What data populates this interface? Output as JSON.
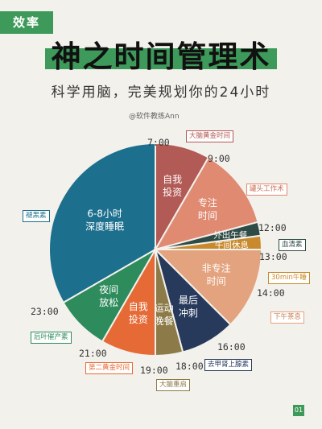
{
  "tag": "效率",
  "title": "神之时间管理术",
  "subtitle": "科学用脑，完美规划你的24小时",
  "credit": "@软件教练Ann",
  "page_number": "01",
  "colors": {
    "green": "#3D9A5A",
    "blue": "#1D6F8E",
    "rose": "#B25A55",
    "salmon": "#E08A72",
    "dark": "#2F4B45",
    "gold": "#C98A2E",
    "peach": "#E4A37F",
    "navy": "#273A5C",
    "olive": "#8C7A48",
    "orange": "#E66A35",
    "teal": "#2E8B5C"
  },
  "chart_data": {
    "type": "pie",
    "title": "",
    "segments": [
      {
        "label": "6-8小时\n深度睡眠",
        "start": "23:00",
        "end": "07:00",
        "color": "#1D6F8E"
      },
      {
        "label": "自我\n投资",
        "start": "07:00",
        "end": "09:00",
        "color": "#B25A55"
      },
      {
        "label": "专注\n时间",
        "start": "09:00",
        "end": "12:00",
        "color": "#E08A72"
      },
      {
        "label": "外出午餐",
        "start": "12:00",
        "end": "12:30",
        "color": "#2F4B45"
      },
      {
        "label": "午间休息",
        "start": "12:30",
        "end": "13:00",
        "color": "#C98A2E"
      },
      {
        "label": "非专注\n时间",
        "start": "13:00",
        "end": "16:00",
        "color": "#E4A37F"
      },
      {
        "label": "最后\n冲刺",
        "start": "16:00",
        "end": "18:00",
        "color": "#273A5C"
      },
      {
        "label": "运动\n晚餐",
        "start": "18:00",
        "end": "19:00",
        "color": "#8C7A48"
      },
      {
        "label": "自我\n投资",
        "start": "19:00",
        "end": "21:00",
        "color": "#E66A35"
      },
      {
        "label": "夜间\n放松",
        "start": "21:00",
        "end": "23:00",
        "color": "#2E8B5C"
      }
    ],
    "time_labels": [
      "7:00",
      "9:00",
      "12:00",
      "13:00",
      "14:00",
      "16:00",
      "18:00",
      "19:00",
      "21:00",
      "23:00"
    ],
    "annotations": [
      "大脑黄金时间",
      "罐头工作术",
      "血清素",
      "30min午睡",
      "下午茶息",
      "去甲肾上腺素",
      "大脑重启",
      "第二黄金时间",
      "后叶催产素",
      "褪黑素"
    ]
  }
}
